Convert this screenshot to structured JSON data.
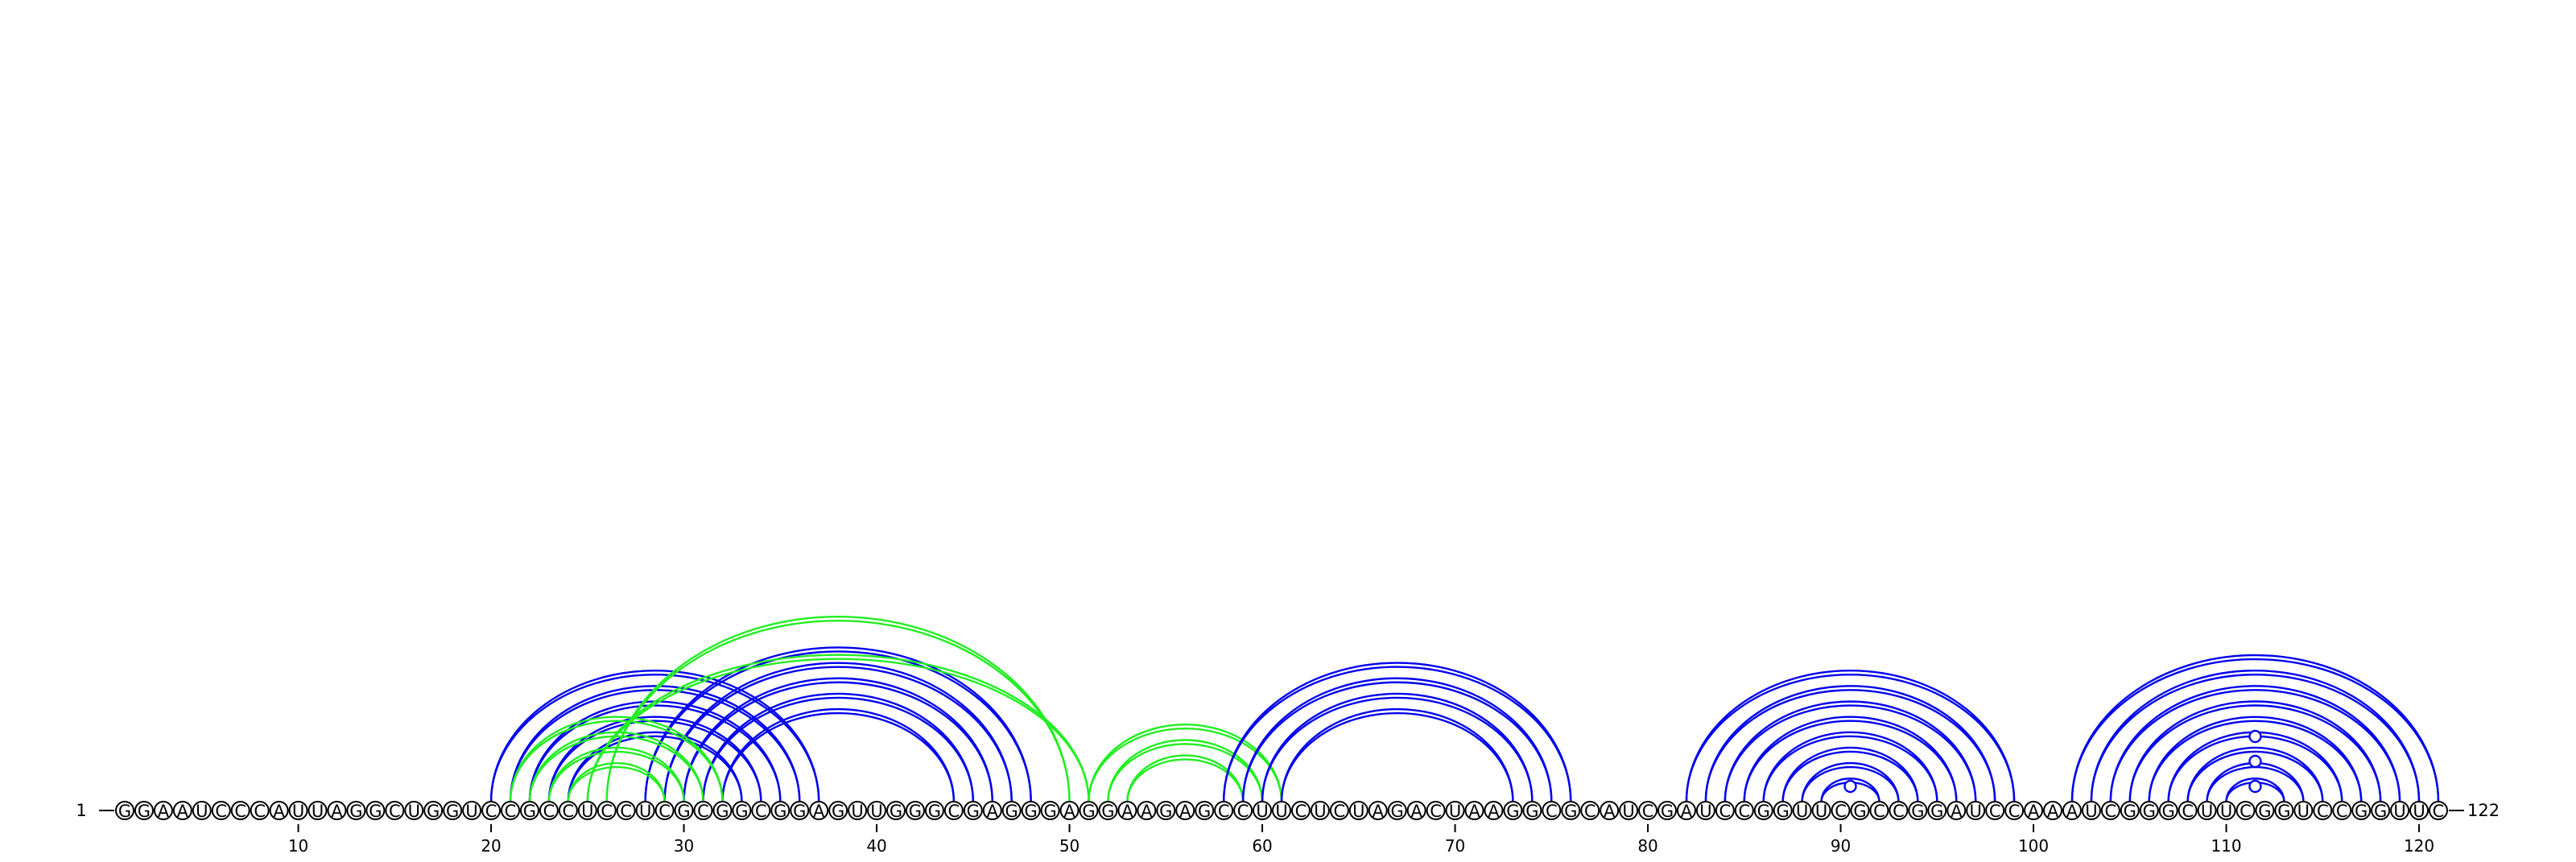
{
  "sequence": "GGAAUCCCAUUAGGCUGGUCCGCCUCCUCGCGGCGGAGUUGGGCGAGGGAGGAAGAGCCUUCUCUAGACUAAGGCGCAUCGAUCCGGUUCGCCGGAUCCAAAUCGGGCUUCGGUCCGGUUC",
  "start_label": "1",
  "end_label": "122",
  "ticks": [
    10,
    20,
    30,
    40,
    50,
    60,
    70,
    80,
    90,
    100,
    110,
    120
  ],
  "colors": {
    "blue": "#0000ee",
    "green": "#22ee22",
    "text": "#000000"
  },
  "pairs": [
    {
      "i": 20,
      "j": 37,
      "color": "blue"
    },
    {
      "i": 21,
      "j": 36,
      "color": "blue"
    },
    {
      "i": 22,
      "j": 35,
      "color": "blue"
    },
    {
      "i": 23,
      "j": 34,
      "color": "blue"
    },
    {
      "i": 24,
      "j": 33,
      "color": "blue"
    },
    {
      "i": 28,
      "j": 48,
      "color": "blue"
    },
    {
      "i": 29,
      "j": 47,
      "color": "blue"
    },
    {
      "i": 30,
      "j": 46,
      "color": "blue"
    },
    {
      "i": 31,
      "j": 45,
      "color": "blue"
    },
    {
      "i": 32,
      "j": 44,
      "color": "blue"
    },
    {
      "i": 21,
      "j": 32,
      "color": "green"
    },
    {
      "i": 22,
      "j": 31,
      "color": "green"
    },
    {
      "i": 23,
      "j": 30,
      "color": "green"
    },
    {
      "i": 24,
      "j": 29,
      "color": "green"
    },
    {
      "i": 25,
      "j": 51,
      "color": "green"
    },
    {
      "i": 26,
      "j": 50,
      "color": "green"
    },
    {
      "i": 51,
      "j": 61,
      "color": "green"
    },
    {
      "i": 52,
      "j": 60,
      "color": "green"
    },
    {
      "i": 53,
      "j": 59,
      "color": "green"
    },
    {
      "i": 58,
      "j": 76,
      "color": "blue"
    },
    {
      "i": 59,
      "j": 75,
      "color": "blue"
    },
    {
      "i": 60,
      "j": 74,
      "color": "blue"
    },
    {
      "i": 61,
      "j": 73,
      "color": "blue"
    },
    {
      "i": 82,
      "j": 99,
      "color": "blue"
    },
    {
      "i": 83,
      "j": 98,
      "color": "blue"
    },
    {
      "i": 84,
      "j": 97,
      "color": "blue"
    },
    {
      "i": 85,
      "j": 96,
      "color": "blue"
    },
    {
      "i": 86,
      "j": 95,
      "color": "blue"
    },
    {
      "i": 87,
      "j": 94,
      "color": "blue"
    },
    {
      "i": 88,
      "j": 93,
      "color": "blue"
    },
    {
      "i": 89,
      "j": 92,
      "color": "blue"
    },
    {
      "i": 102,
      "j": 121,
      "color": "blue"
    },
    {
      "i": 103,
      "j": 120,
      "color": "blue"
    },
    {
      "i": 104,
      "j": 119,
      "color": "blue"
    },
    {
      "i": 105,
      "j": 118,
      "color": "blue"
    },
    {
      "i": 106,
      "j": 117,
      "color": "blue"
    },
    {
      "i": 107,
      "j": 116,
      "color": "blue"
    },
    {
      "i": 108,
      "j": 115,
      "color": "blue"
    },
    {
      "i": 109,
      "j": 114,
      "color": "blue"
    },
    {
      "i": 110,
      "j": 113,
      "color": "blue"
    }
  ],
  "loop_marks": [
    {
      "i": 90,
      "j": 91,
      "color": "blue"
    },
    {
      "i": 111,
      "j": 112,
      "color": "blue"
    },
    {
      "i": 111,
      "j": 112,
      "color": "blue"
    },
    {
      "i": 111,
      "j": 112,
      "color": "blue"
    }
  ]
}
